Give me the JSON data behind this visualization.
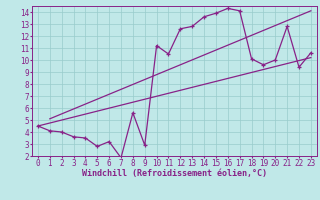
{
  "bg_color": "#c0e8e8",
  "grid_color": "#99cccc",
  "line_color": "#882288",
  "axis_color": "#882288",
  "xlabel": "Windchill (Refroidissement éolien,°C)",
  "xlim": [
    -0.5,
    23.5
  ],
  "ylim": [
    2,
    14.5
  ],
  "xticks": [
    0,
    1,
    2,
    3,
    4,
    5,
    6,
    7,
    8,
    9,
    10,
    11,
    12,
    13,
    14,
    15,
    16,
    17,
    18,
    19,
    20,
    21,
    22,
    23
  ],
  "yticks": [
    2,
    3,
    4,
    5,
    6,
    7,
    8,
    9,
    10,
    11,
    12,
    13,
    14
  ],
  "data_x": [
    0,
    1,
    2,
    3,
    4,
    5,
    6,
    7,
    8,
    9,
    10,
    11,
    12,
    13,
    14,
    15,
    16,
    17,
    18,
    19,
    20,
    21,
    22,
    23
  ],
  "data_y": [
    4.5,
    4.1,
    4.0,
    3.6,
    3.5,
    2.8,
    3.2,
    1.85,
    5.6,
    2.9,
    11.2,
    10.5,
    12.6,
    12.8,
    13.6,
    13.9,
    14.3,
    14.1,
    10.1,
    9.6,
    10.0,
    12.8,
    9.4,
    10.6
  ],
  "line1_x": [
    1,
    23
  ],
  "line1_y": [
    5.1,
    14.1
  ],
  "line2_x": [
    0,
    23
  ],
  "line2_y": [
    4.5,
    10.2
  ],
  "tick_fontsize": 5.5,
  "xlabel_fontsize": 6.0
}
